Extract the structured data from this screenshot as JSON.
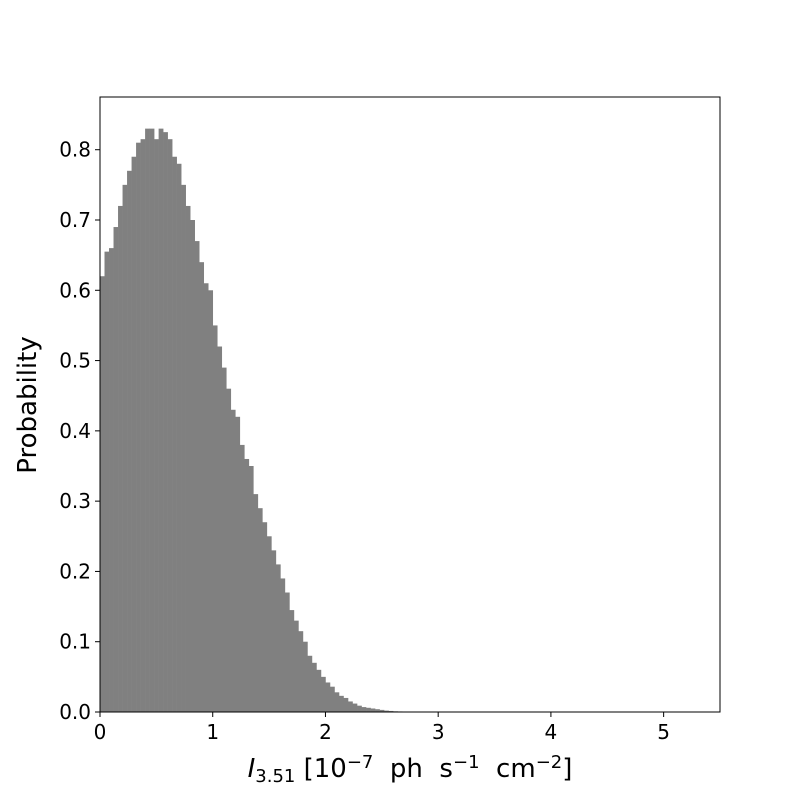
{
  "chart_data": {
    "type": "histogram",
    "y_label": "Probability",
    "x_label_parts": [
      "I",
      "3.51",
      " [10",
      "−7",
      "  ph  s",
      "−1",
      "  cm",
      "−2",
      "]"
    ],
    "color": "#808080",
    "bins": [
      0,
      0.04,
      0.08,
      0.12,
      0.16,
      0.2,
      0.24,
      0.28,
      0.32,
      0.36,
      0.4,
      0.44,
      0.48,
      0.52,
      0.56,
      0.6,
      0.64,
      0.68,
      0.72,
      0.76,
      0.8,
      0.84,
      0.88,
      0.92,
      0.96,
      1,
      1.04,
      1.08,
      1.12,
      1.16,
      1.2,
      1.24,
      1.28,
      1.32,
      1.36,
      1.4,
      1.44,
      1.48,
      1.52,
      1.56,
      1.6,
      1.64,
      1.68,
      1.72,
      1.76,
      1.8,
      1.84,
      1.88,
      1.92,
      1.96,
      2,
      2.04,
      2.08,
      2.12,
      2.16,
      2.2,
      2.24,
      2.28,
      2.32,
      2.36,
      2.4,
      2.44,
      2.48,
      2.52,
      2.56,
      2.6,
      2.64,
      2.68,
      2.72,
      2.76,
      2.8,
      2.84,
      2.88
    ],
    "values": [
      0.62,
      0.655,
      0.66,
      0.69,
      0.72,
      0.75,
      0.77,
      0.79,
      0.81,
      0.815,
      0.83,
      0.83,
      0.815,
      0.83,
      0.825,
      0.815,
      0.79,
      0.78,
      0.75,
      0.72,
      0.7,
      0.67,
      0.64,
      0.61,
      0.6,
      0.55,
      0.52,
      0.49,
      0.46,
      0.43,
      0.42,
      0.38,
      0.36,
      0.35,
      0.31,
      0.29,
      0.27,
      0.25,
      0.23,
      0.21,
      0.19,
      0.17,
      0.145,
      0.13,
      0.115,
      0.1,
      0.08,
      0.07,
      0.06,
      0.05,
      0.042,
      0.036,
      0.028,
      0.023,
      0.02,
      0.015,
      0.012,
      0.009,
      0.007,
      0.006,
      0.005,
      0.004,
      0.003,
      0.002,
      0.0015,
      0.001,
      0.0008,
      0.0006,
      0.0004,
      0.0003,
      0.0002,
      0.0001
    ],
    "xlim": [
      0,
      5.5
    ],
    "xticks": [
      0,
      1,
      2,
      3,
      4,
      5
    ],
    "ylim": [
      0,
      0.875
    ],
    "yticks": [
      {
        "value": 0,
        "label": "0.0"
      },
      0.1,
      0.2,
      0.3,
      0.4,
      0.5,
      0.6,
      0.7,
      0.8
    ]
  }
}
